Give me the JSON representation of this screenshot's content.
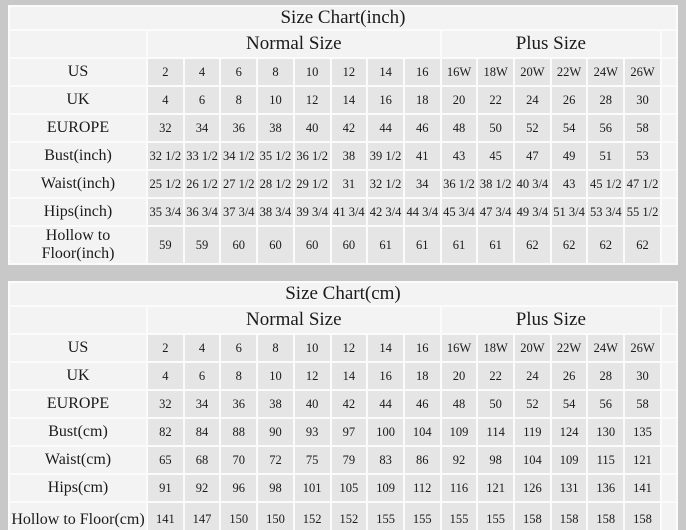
{
  "colors": {
    "page_background": "#c8c8c8",
    "cell_gap": "#fbfbfb",
    "label_cell_bg": "#f3f3f3",
    "data_cell_bg": "#e5e5e5",
    "text": "#1b1b1b"
  },
  "chart_data": [
    {
      "type": "table",
      "title": "Size Chart(inch)",
      "group_headers": [
        {
          "label": "Normal Size",
          "colspan": 8
        },
        {
          "label": "Plus Size",
          "colspan": 6
        }
      ],
      "rows": [
        {
          "label": "US",
          "values": [
            "2",
            "4",
            "6",
            "8",
            "10",
            "12",
            "14",
            "16",
            "16W",
            "18W",
            "20W",
            "22W",
            "24W",
            "26W"
          ]
        },
        {
          "label": "UK",
          "values": [
            "4",
            "6",
            "8",
            "10",
            "12",
            "14",
            "16",
            "18",
            "20",
            "22",
            "24",
            "26",
            "28",
            "30"
          ]
        },
        {
          "label": "EUROPE",
          "values": [
            "32",
            "34",
            "36",
            "38",
            "40",
            "42",
            "44",
            "46",
            "48",
            "50",
            "52",
            "54",
            "56",
            "58"
          ]
        },
        {
          "label": "Bust(inch)",
          "values": [
            "32 1/2",
            "33 1/2",
            "34 1/2",
            "35 1/2",
            "36 1/2",
            "38",
            "39 1/2",
            "41",
            "43",
            "45",
            "47",
            "49",
            "51",
            "53"
          ]
        },
        {
          "label": "Waist(inch)",
          "values": [
            "25 1/2",
            "26 1/2",
            "27 1/2",
            "28 1/2",
            "29 1/2",
            "31",
            "32 1/2",
            "34",
            "36 1/2",
            "38 1/2",
            "40 3/4",
            "43",
            "45 1/2",
            "47 1/2"
          ]
        },
        {
          "label": "Hips(inch)",
          "values": [
            "35 3/4",
            "36 3/4",
            "37 3/4",
            "38 3/4",
            "39 3/4",
            "41 3/4",
            "42 3/4",
            "44 3/4",
            "45 3/4",
            "47 3/4",
            "49 3/4",
            "51 3/4",
            "53 3/4",
            "55 1/2"
          ]
        },
        {
          "label": "Hollow to Floor(inch)",
          "values": [
            "59",
            "59",
            "60",
            "60",
            "60",
            "60",
            "61",
            "61",
            "61",
            "61",
            "62",
            "62",
            "62",
            "62"
          ]
        }
      ]
    },
    {
      "type": "table",
      "title": "Size Chart(cm)",
      "group_headers": [
        {
          "label": "Normal Size",
          "colspan": 8
        },
        {
          "label": "Plus Size",
          "colspan": 6
        }
      ],
      "rows": [
        {
          "label": "US",
          "values": [
            "2",
            "4",
            "6",
            "8",
            "10",
            "12",
            "14",
            "16",
            "16W",
            "18W",
            "20W",
            "22W",
            "24W",
            "26W"
          ]
        },
        {
          "label": "UK",
          "values": [
            "4",
            "6",
            "8",
            "10",
            "12",
            "14",
            "16",
            "18",
            "20",
            "22",
            "24",
            "26",
            "28",
            "30"
          ]
        },
        {
          "label": "EUROPE",
          "values": [
            "32",
            "34",
            "36",
            "38",
            "40",
            "42",
            "44",
            "46",
            "48",
            "50",
            "52",
            "54",
            "56",
            "58"
          ]
        },
        {
          "label": "Bust(cm)",
          "values": [
            "82",
            "84",
            "88",
            "90",
            "93",
            "97",
            "100",
            "104",
            "109",
            "114",
            "119",
            "124",
            "130",
            "135"
          ]
        },
        {
          "label": "Waist(cm)",
          "values": [
            "65",
            "68",
            "70",
            "72",
            "75",
            "79",
            "83",
            "86",
            "92",
            "98",
            "104",
            "109",
            "115",
            "121"
          ]
        },
        {
          "label": "Hips(cm)",
          "values": [
            "91",
            "92",
            "96",
            "98",
            "101",
            "105",
            "109",
            "112",
            "116",
            "121",
            "126",
            "131",
            "136",
            "141"
          ]
        },
        {
          "label": "Hollow to Floor(cm)",
          "values": [
            "141",
            "147",
            "150",
            "150",
            "152",
            "152",
            "155",
            "155",
            "155",
            "155",
            "158",
            "158",
            "158",
            "158"
          ]
        }
      ]
    }
  ]
}
